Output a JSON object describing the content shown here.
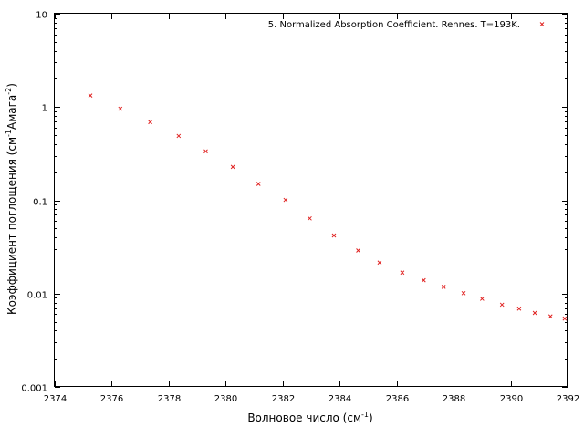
{
  "chart_data": {
    "type": "scatter",
    "xlabel": {
      "main": "Волновое число (см",
      "sup": "-1",
      "tail": ")"
    },
    "ylabel": {
      "main": "Коэффициент поглощения (см",
      "sup1": "-1",
      "mid": "Амага",
      "sup2": "-2",
      "tail": ")"
    },
    "xlim": [
      2374,
      2392
    ],
    "ylim": [
      0.001,
      10
    ],
    "yscale": "log",
    "x_ticks": [
      "2374",
      "2376",
      "2378",
      "2380",
      "2382",
      "2384",
      "2386",
      "2388",
      "2390",
      "2392"
    ],
    "y_ticks": [
      "0.001",
      "0.01",
      "0.1",
      "1",
      "10"
    ],
    "grid": false,
    "legend_position": "top-right",
    "series": [
      {
        "name": "5. Normalized Absorption Coefficient. Rennes. T=193K.",
        "color": "#e0201f",
        "marker": "x",
        "points": [
          [
            2375.25,
            1.33
          ],
          [
            2376.3,
            0.96
          ],
          [
            2377.35,
            0.69
          ],
          [
            2378.35,
            0.49
          ],
          [
            2379.3,
            0.335
          ],
          [
            2380.25,
            0.228
          ],
          [
            2381.15,
            0.15
          ],
          [
            2382.1,
            0.101
          ],
          [
            2382.95,
            0.064
          ],
          [
            2383.8,
            0.042
          ],
          [
            2384.65,
            0.029
          ],
          [
            2385.4,
            0.0215
          ],
          [
            2386.2,
            0.0168
          ],
          [
            2386.95,
            0.0139
          ],
          [
            2387.65,
            0.0118
          ],
          [
            2388.35,
            0.0101
          ],
          [
            2389.0,
            0.0088
          ],
          [
            2389.7,
            0.0076
          ],
          [
            2390.3,
            0.0069
          ],
          [
            2390.85,
            0.0062
          ],
          [
            2391.4,
            0.0057
          ],
          [
            2391.9,
            0.0054
          ]
        ]
      }
    ]
  }
}
